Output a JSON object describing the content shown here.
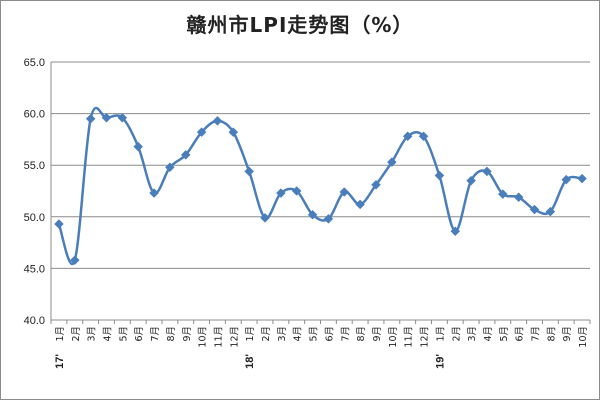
{
  "chart_data": {
    "type": "line",
    "title": "赣州市LPI走势图（%）",
    "xlabel": "",
    "ylabel": "",
    "ylim": [
      40.0,
      65.0
    ],
    "yticks": [
      "40.0",
      "45.0",
      "50.0",
      "55.0",
      "60.0",
      "65.0"
    ],
    "categories": [
      "1月",
      "2月",
      "3月",
      "4月",
      "5月",
      "6月",
      "7月",
      "8月",
      "9月",
      "10月",
      "11月",
      "12月",
      "1月",
      "2月",
      "3月",
      "4月",
      "5月",
      "6月",
      "7月",
      "8月",
      "9月",
      "10月",
      "11月",
      "12月",
      "1月",
      "2月",
      "3月",
      "4月",
      "5月",
      "6月",
      "7月",
      "8月",
      "9月",
      "10月"
    ],
    "year_markers": [
      {
        "index": 0,
        "label": "17'"
      },
      {
        "index": 12,
        "label": "18'"
      },
      {
        "index": 24,
        "label": "19'"
      }
    ],
    "series": [
      {
        "values": [
          49.3,
          45.8,
          59.5,
          59.6,
          59.6,
          56.8,
          52.3,
          54.8,
          56.0,
          58.2,
          59.3,
          58.2,
          54.4,
          49.9,
          52.3,
          52.5,
          50.2,
          49.8,
          52.4,
          51.2,
          53.1,
          55.3,
          57.8,
          57.8,
          54.0,
          48.6,
          53.5,
          54.4,
          52.2,
          51.9,
          50.7,
          50.5,
          53.6,
          53.7
        ]
      }
    ],
    "grid": true,
    "legend": "none",
    "line_color": "#4a7ebb",
    "marker_color": "#4a7ebb",
    "gridline_color": "#8c8c8c"
  }
}
